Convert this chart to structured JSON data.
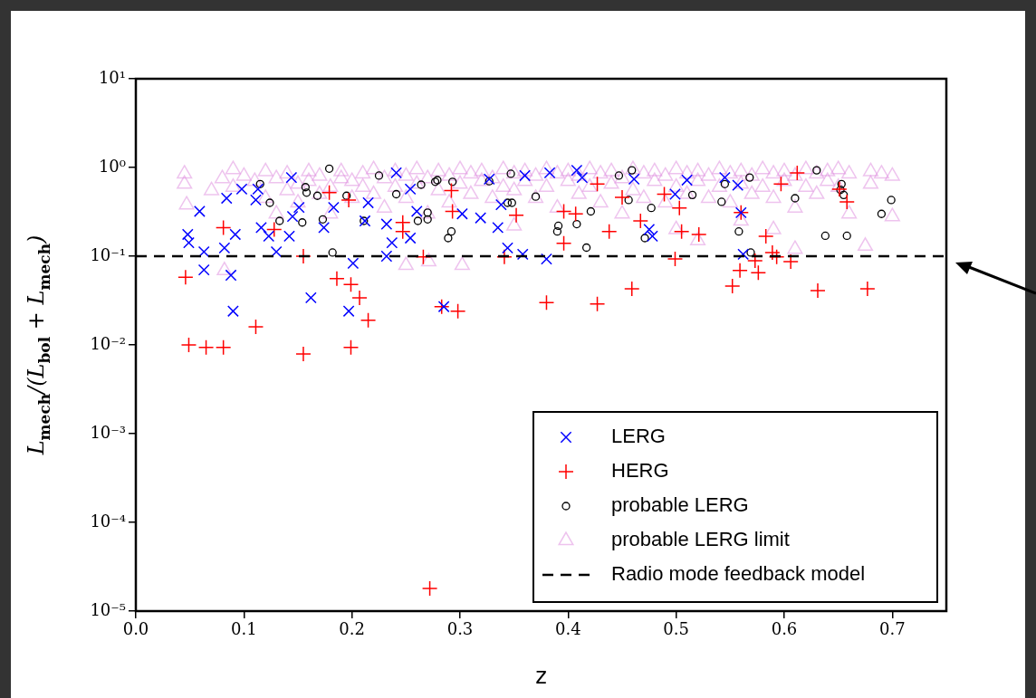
{
  "chart_data": {
    "type": "scatter",
    "xlabel": "z",
    "ylabel": "L$_{mech}$/(L$_{bol}$ + L$_{mech}$)",
    "log": "y",
    "grid": false,
    "legend": "bottom right",
    "xlim": [
      0,
      0.75
    ],
    "xticks": [
      {
        "value": 0,
        "label": "0.0"
      },
      0.1,
      0.2,
      0.3,
      0.4,
      0.5,
      0.6,
      0.7
    ],
    "ylim": [
      1e-05,
      10
    ],
    "yticks": [
      {
        "value": 1e-05,
        "label": "10⁻⁵"
      },
      {
        "value": 0.0001,
        "label": "10⁻⁴"
      },
      {
        "value": 0.001,
        "label": "10⁻³"
      },
      {
        "value": 0.01,
        "label": "10⁻²"
      },
      {
        "value": 0.1,
        "label": "10⁻¹"
      },
      {
        "value": 1,
        "label": "10⁰"
      },
      {
        "value": 10,
        "label": "10¹"
      }
    ],
    "ref_lines": [
      {
        "axis": "y",
        "value": 0.1,
        "label": "Radio mode feedback model",
        "color": "#000000",
        "line_style": "dashed"
      }
    ],
    "series": [
      {
        "name": "LERG",
        "color": "#0000ff",
        "marker": "cross",
        "x": [
          0.059,
          0.048,
          0.049,
          0.063,
          0.063,
          0.082,
          0.088,
          0.084,
          0.098,
          0.113,
          0.111,
          0.092,
          0.116,
          0.123,
          0.13,
          0.142,
          0.145,
          0.151,
          0.144,
          0.09,
          0.162,
          0.197,
          0.201,
          0.174,
          0.183,
          0.215,
          0.212,
          0.232,
          0.237,
          0.232,
          0.241,
          0.254,
          0.26,
          0.254,
          0.327,
          0.36,
          0.383,
          0.408,
          0.413,
          0.302,
          0.319,
          0.335,
          0.338,
          0.344,
          0.358,
          0.38,
          0.285,
          0.461,
          0.475,
          0.478,
          0.51,
          0.499,
          0.545,
          0.557,
          0.56,
          0.562
        ],
        "values": [
          0.32,
          0.176,
          0.142,
          0.112,
          0.07,
          0.124,
          0.061,
          0.45,
          0.57,
          0.57,
          0.43,
          0.176,
          0.21,
          0.168,
          0.112,
          0.168,
          0.28,
          0.355,
          0.77,
          0.024,
          0.034,
          0.024,
          0.083,
          0.21,
          0.355,
          0.4,
          0.25,
          0.23,
          0.142,
          0.1,
          0.87,
          0.57,
          0.32,
          0.16,
          0.74,
          0.81,
          0.87,
          0.93,
          0.77,
          0.3,
          0.27,
          0.21,
          0.38,
          0.124,
          0.105,
          0.093,
          0.027,
          0.74,
          0.2,
          0.168,
          0.72,
          0.5,
          0.77,
          0.63,
          0.31,
          0.105
        ]
      },
      {
        "name": "HERG",
        "color": "#ff0000",
        "marker": "plus",
        "x": [
          0.046,
          0.049,
          0.065,
          0.081,
          0.081,
          0.111,
          0.128,
          0.155,
          0.155,
          0.179,
          0.197,
          0.186,
          0.199,
          0.207,
          0.215,
          0.199,
          0.247,
          0.247,
          0.266,
          0.283,
          0.298,
          0.292,
          0.293,
          0.352,
          0.341,
          0.38,
          0.396,
          0.407,
          0.396,
          0.427,
          0.427,
          0.45,
          0.438,
          0.459,
          0.467,
          0.489,
          0.503,
          0.505,
          0.521,
          0.499,
          0.56,
          0.559,
          0.552,
          0.573,
          0.576,
          0.583,
          0.589,
          0.593,
          0.606,
          0.597,
          0.612,
          0.651,
          0.658,
          0.631,
          0.677,
          0.272
        ],
        "values": [
          0.058,
          0.01,
          0.0094,
          0.0094,
          0.21,
          0.016,
          0.2,
          0.1,
          0.0079,
          0.52,
          0.43,
          0.056,
          0.048,
          0.034,
          0.019,
          0.0094,
          0.24,
          0.19,
          0.098,
          0.027,
          0.024,
          0.55,
          0.32,
          0.29,
          0.098,
          0.03,
          0.32,
          0.3,
          0.14,
          0.029,
          0.65,
          0.46,
          0.19,
          0.043,
          0.25,
          0.5,
          0.35,
          0.19,
          0.176,
          0.093,
          0.31,
          0.069,
          0.046,
          0.089,
          0.065,
          0.168,
          0.11,
          0.098,
          0.087,
          0.65,
          0.87,
          0.57,
          0.41,
          0.041,
          0.043,
          1.8e-05
        ]
      },
      {
        "name": "probable LERG",
        "color": "#000000",
        "marker": "circle",
        "x": [
          0.115,
          0.124,
          0.133,
          0.154,
          0.157,
          0.158,
          0.168,
          0.173,
          0.179,
          0.195,
          0.211,
          0.182,
          0.225,
          0.241,
          0.264,
          0.277,
          0.279,
          0.293,
          0.27,
          0.261,
          0.27,
          0.292,
          0.289,
          0.327,
          0.347,
          0.344,
          0.348,
          0.37,
          0.391,
          0.39,
          0.408,
          0.421,
          0.417,
          0.447,
          0.459,
          0.456,
          0.477,
          0.471,
          0.515,
          0.545,
          0.568,
          0.542,
          0.558,
          0.569,
          0.61,
          0.63,
          0.638,
          0.653,
          0.655,
          0.652,
          0.658,
          0.69,
          0.699
        ],
        "values": [
          0.65,
          0.4,
          0.25,
          0.24,
          0.6,
          0.52,
          0.48,
          0.26,
          0.97,
          0.48,
          0.25,
          0.11,
          0.81,
          0.5,
          0.64,
          0.69,
          0.72,
          0.69,
          0.31,
          0.25,
          0.26,
          0.19,
          0.16,
          0.7,
          0.85,
          0.4,
          0.4,
          0.47,
          0.22,
          0.19,
          0.23,
          0.32,
          0.125,
          0.81,
          0.93,
          0.43,
          0.35,
          0.16,
          0.49,
          0.65,
          0.77,
          0.41,
          0.19,
          0.11,
          0.45,
          0.93,
          0.17,
          0.65,
          0.49,
          0.56,
          0.17,
          0.3,
          0.43
        ]
      },
      {
        "name": "probable LERG limit",
        "color": "#dd88dd",
        "marker": "triangle",
        "x": [
          0.045,
          0.045,
          0.047,
          0.07,
          0.08,
          0.09,
          0.09,
          0.1,
          0.11,
          0.12,
          0.12,
          0.13,
          0.13,
          0.14,
          0.14,
          0.15,
          0.15,
          0.16,
          0.16,
          0.17,
          0.17,
          0.18,
          0.18,
          0.19,
          0.19,
          0.2,
          0.2,
          0.21,
          0.21,
          0.22,
          0.22,
          0.23,
          0.23,
          0.24,
          0.24,
          0.25,
          0.25,
          0.26,
          0.26,
          0.27,
          0.27,
          0.28,
          0.28,
          0.29,
          0.29,
          0.3,
          0.3,
          0.31,
          0.31,
          0.32,
          0.32,
          0.33,
          0.33,
          0.34,
          0.34,
          0.35,
          0.35,
          0.35,
          0.36,
          0.36,
          0.37,
          0.37,
          0.38,
          0.38,
          0.39,
          0.39,
          0.4,
          0.4,
          0.41,
          0.41,
          0.42,
          0.42,
          0.43,
          0.43,
          0.44,
          0.44,
          0.45,
          0.45,
          0.46,
          0.46,
          0.47,
          0.47,
          0.48,
          0.48,
          0.49,
          0.49,
          0.5,
          0.5,
          0.5,
          0.51,
          0.51,
          0.52,
          0.52,
          0.52,
          0.53,
          0.53,
          0.54,
          0.54,
          0.55,
          0.55,
          0.56,
          0.56,
          0.56,
          0.57,
          0.57,
          0.58,
          0.58,
          0.59,
          0.59,
          0.59,
          0.6,
          0.6,
          0.61,
          0.61,
          0.61,
          0.62,
          0.62,
          0.63,
          0.63,
          0.64,
          0.64,
          0.65,
          0.65,
          0.66,
          0.66,
          0.675,
          0.68,
          0.68,
          0.69,
          0.7,
          0.7,
          0.082,
          0.25,
          0.271,
          0.302
        ],
        "values": [
          0.85,
          0.65,
          0.38,
          0.55,
          0.75,
          0.95,
          0.6,
          0.8,
          0.7,
          0.9,
          0.45,
          0.75,
          0.3,
          0.85,
          0.55,
          0.65,
          0.4,
          0.9,
          0.7,
          0.8,
          0.5,
          0.6,
          0.3,
          0.9,
          0.75,
          0.7,
          0.45,
          0.85,
          0.6,
          0.95,
          0.5,
          0.75,
          0.35,
          0.9,
          0.6,
          0.8,
          0.45,
          0.95,
          0.65,
          0.75,
          0.3,
          0.9,
          0.55,
          0.8,
          0.4,
          0.95,
          0.65,
          0.85,
          0.5,
          0.9,
          0.7,
          0.75,
          0.45,
          0.95,
          0.6,
          0.85,
          0.55,
          0.22,
          0.9,
          0.7,
          0.8,
          0.45,
          0.95,
          0.6,
          0.85,
          0.35,
          0.9,
          0.7,
          0.8,
          0.5,
          0.95,
          0.6,
          0.85,
          0.4,
          0.9,
          0.65,
          0.75,
          0.3,
          0.95,
          0.55,
          0.85,
          0.45,
          0.9,
          0.7,
          0.8,
          0.4,
          0.95,
          0.6,
          0.2,
          0.85,
          0.5,
          0.9,
          0.7,
          0.15,
          0.8,
          0.45,
          0.95,
          0.6,
          0.85,
          0.4,
          0.9,
          0.65,
          0.25,
          0.8,
          0.5,
          0.95,
          0.6,
          0.85,
          0.45,
          0.2,
          0.9,
          0.7,
          0.8,
          0.35,
          0.12,
          0.95,
          0.6,
          0.85,
          0.5,
          0.9,
          0.7,
          0.95,
          0.6,
          0.85,
          0.3,
          0.13,
          0.9,
          0.65,
          0.85,
          0.8,
          0.28,
          0.069,
          0.079,
          0.087,
          0.079
        ]
      }
    ]
  }
}
